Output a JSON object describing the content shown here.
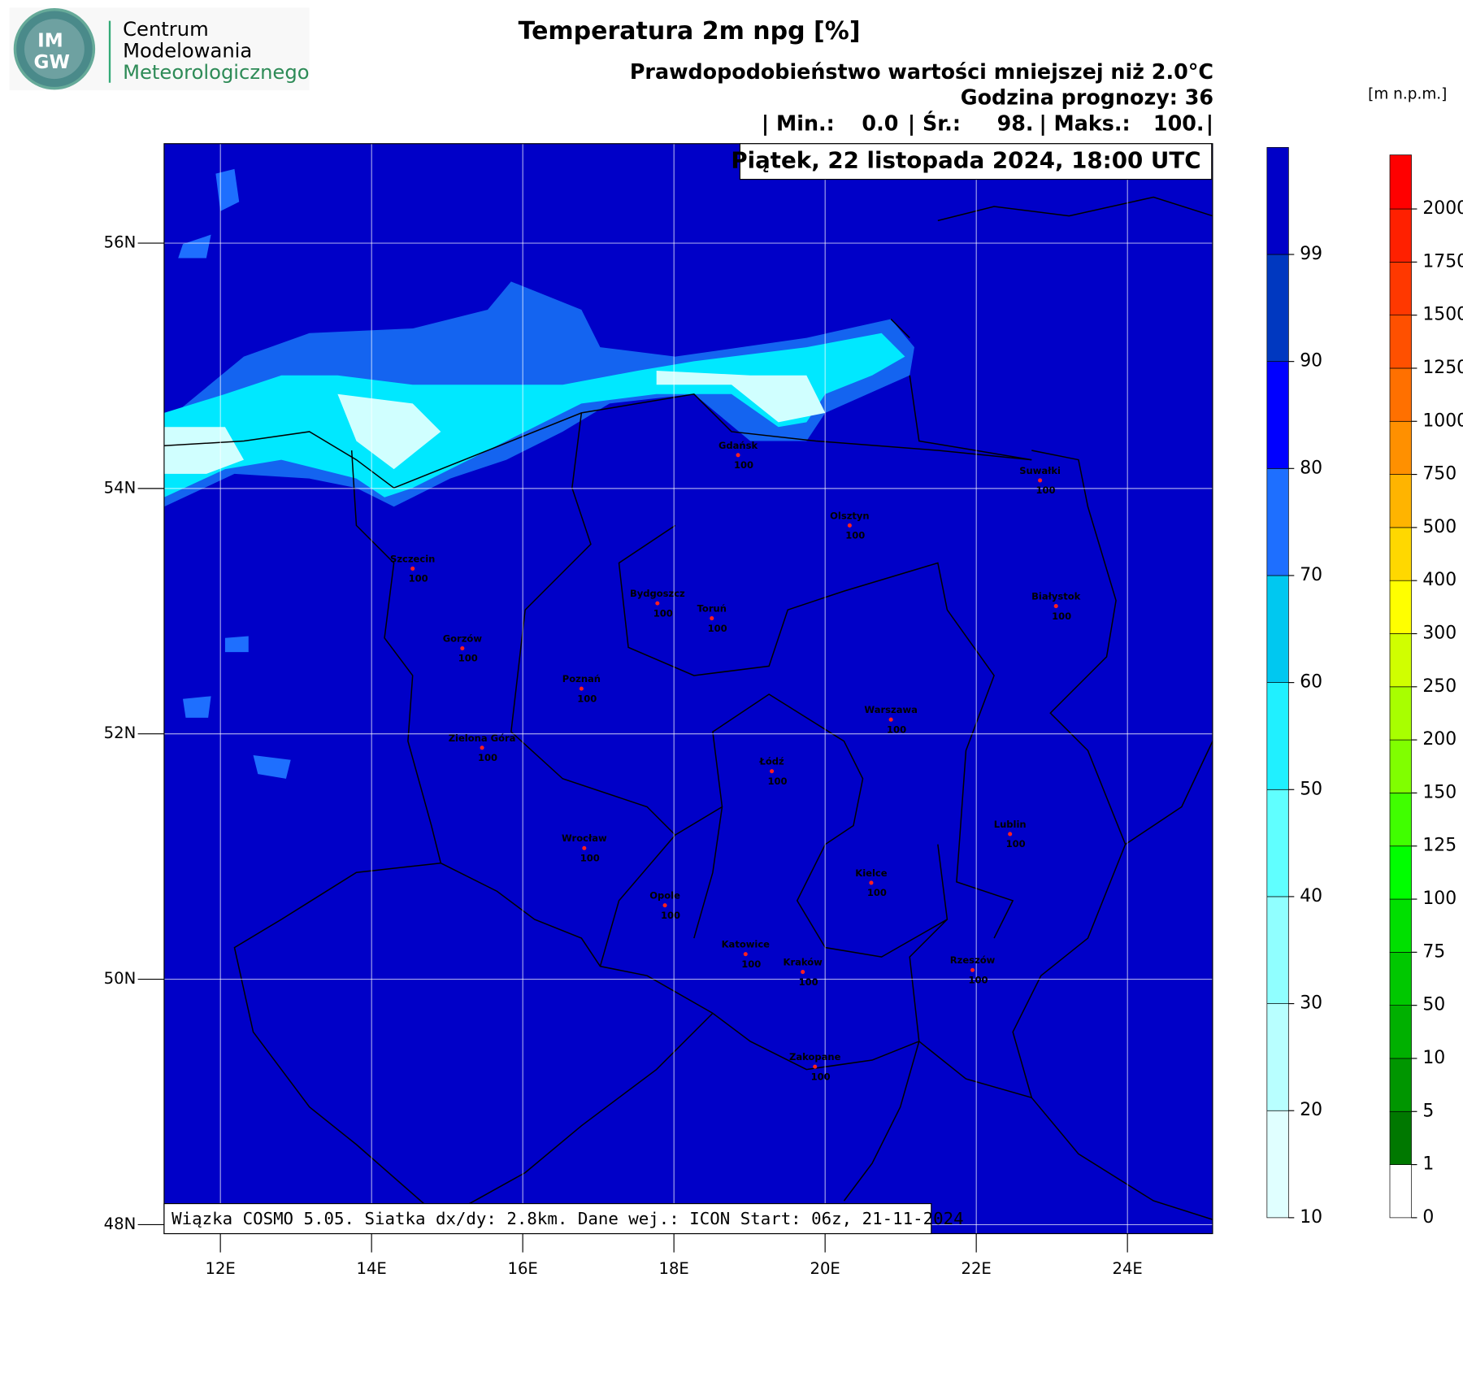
{
  "logo": {
    "mark": [
      "IM",
      "GW"
    ],
    "lines": [
      "Centrum",
      "Modelowania",
      "Meteorologicznego"
    ]
  },
  "header": {
    "title": "Temperatura 2m npg [%]",
    "subtitle": "Prawdopodobieństwo wartości mniejszej niż 2.0°C",
    "forecast_hour": "Godzina prognozy: 36",
    "stats": [
      "| Min.:",
      "0.0",
      "| Śr.:",
      "98.",
      "| Maks.:",
      "100.",
      "|"
    ],
    "valid_time": "Piątek, 22 listopada 2024, 18:00 UTC"
  },
  "footer": "Wiązka COSMO 5.05. Siatka dx/dy: 2.8km. Dane wej.: ICON Start: 06z, 21-11-2024",
  "map": {
    "lat_ticks": [
      {
        "value": 56,
        "label": "56N"
      },
      {
        "value": 54,
        "label": "54N"
      },
      {
        "value": 52,
        "label": "52N"
      },
      {
        "value": 50,
        "label": "50N"
      },
      {
        "value": 48,
        "label": "48N"
      }
    ],
    "lon_ticks": [
      {
        "value": 12,
        "label": "12E"
      },
      {
        "value": 14,
        "label": "14E"
      },
      {
        "value": 16,
        "label": "16E"
      },
      {
        "value": 18,
        "label": "18E"
      },
      {
        "value": 20,
        "label": "20E"
      },
      {
        "value": 22,
        "label": "22E"
      },
      {
        "value": 24,
        "label": "24E"
      }
    ]
  },
  "cities": [
    {
      "name": "Gdańsk",
      "value": 100
    },
    {
      "name": "Suwałki",
      "value": 100
    },
    {
      "name": "Olsztyn",
      "value": 100
    },
    {
      "name": "Szczecin",
      "value": 100
    },
    {
      "name": "Bydgoszcz",
      "value": 100
    },
    {
      "name": "Toruń",
      "value": 100
    },
    {
      "name": "Białystok",
      "value": 100
    },
    {
      "name": "Gorzów",
      "value": 100
    },
    {
      "name": "Poznań",
      "value": 100
    },
    {
      "name": "Warszawa",
      "value": 100
    },
    {
      "name": "Zielona Góra",
      "value": 100
    },
    {
      "name": "Łódź",
      "value": 100
    },
    {
      "name": "Lublin",
      "value": 100
    },
    {
      "name": "Wrocław",
      "value": 100
    },
    {
      "name": "Kielce",
      "value": 100
    },
    {
      "name": "Opole",
      "value": 100
    },
    {
      "name": "Katowice",
      "value": 100
    },
    {
      "name": "Kraków",
      "value": 100
    },
    {
      "name": "Rzeszów",
      "value": 100
    },
    {
      "name": "Zakopane",
      "value": 100
    }
  ],
  "probability_legend": {
    "levels": [
      10,
      20,
      30,
      40,
      50,
      60,
      70,
      80,
      90,
      99
    ],
    "colors": [
      "#e0ffff",
      "#b8ffff",
      "#90ffff",
      "#60ffff",
      "#20f0ff",
      "#00c8f0",
      "#1e6fff",
      "#0000ff",
      "#0038c0",
      "#0000c8"
    ]
  },
  "elevation_legend": {
    "unit": "[m n.p.m.]",
    "levels": [
      0,
      1,
      5,
      10,
      50,
      75,
      100,
      125,
      150,
      200,
      250,
      300,
      400,
      500,
      750,
      1000,
      1250,
      1500,
      1750,
      2000
    ],
    "colors": [
      "#ffffff",
      "#007800",
      "#009600",
      "#00b000",
      "#00c800",
      "#00e000",
      "#00ff00",
      "#40ff00",
      "#80ff00",
      "#a8ff00",
      "#d0ff00",
      "#ffff00",
      "#ffd800",
      "#ffb400",
      "#ff9000",
      "#ff7000",
      "#ff5000",
      "#ff3800",
      "#ff2000",
      "#ff0000"
    ]
  }
}
